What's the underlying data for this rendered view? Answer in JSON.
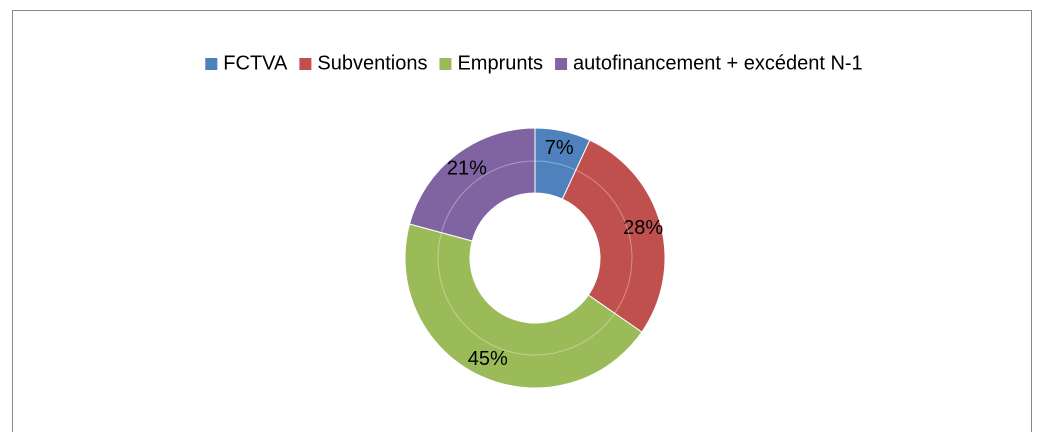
{
  "chart_data": {
    "type": "donut",
    "categories": [
      "FCTVA",
      "Subventions",
      "Emprunts",
      "autofinancement + excédent N-1"
    ],
    "values": [
      7,
      28,
      45,
      21
    ],
    "value_labels": [
      "7%",
      "28%",
      "45%",
      "21%"
    ],
    "colors": [
      "#4f81bd",
      "#c0504d",
      "#9bbb59",
      "#8064a2"
    ],
    "legend": "top"
  }
}
